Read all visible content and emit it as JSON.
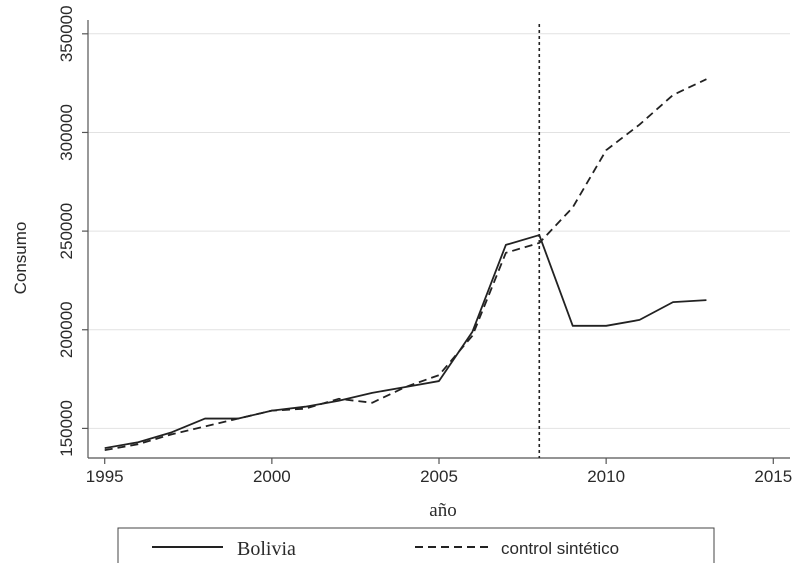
{
  "chart_data": {
    "type": "line",
    "xlabel": "año",
    "ylabel": "Consumo",
    "xlim": [
      1994.5,
      2015.5
    ],
    "ylim": [
      135000,
      357000
    ],
    "x_ticks": [
      1995,
      2000,
      2005,
      2010,
      2015
    ],
    "y_ticks": [
      150000,
      200000,
      250000,
      300000,
      350000
    ],
    "x_tick_labels": [
      "1995",
      "2000",
      "2005",
      "2010",
      "2015"
    ],
    "y_tick_labels": [
      "150000",
      "200000",
      "250000",
      "300000",
      "350000"
    ],
    "grid": true,
    "legend_position": "bottom",
    "vertical_line": {
      "x": 2008,
      "style": "dotted"
    },
    "x": [
      1995,
      1996,
      1997,
      1998,
      1999,
      2000,
      2001,
      2002,
      2003,
      2004,
      2005,
      2006,
      2007,
      2008,
      2009,
      2010,
      2011,
      2012,
      2013
    ],
    "series": [
      {
        "name": "Bolivia",
        "style": "solid",
        "values": [
          140000,
          143000,
          148000,
          155000,
          155000,
          159000,
          161000,
          164000,
          168000,
          171000,
          174000,
          199000,
          243000,
          248000,
          202000,
          202000,
          205000,
          214000,
          215000
        ]
      },
      {
        "name": "control sintético",
        "style": "dashed",
        "values": [
          139000,
          142000,
          147000,
          151000,
          155000,
          159000,
          160000,
          165000,
          163000,
          171000,
          177000,
          197000,
          239000,
          244000,
          262000,
          291000,
          304000,
          319000,
          327000
        ]
      }
    ]
  }
}
